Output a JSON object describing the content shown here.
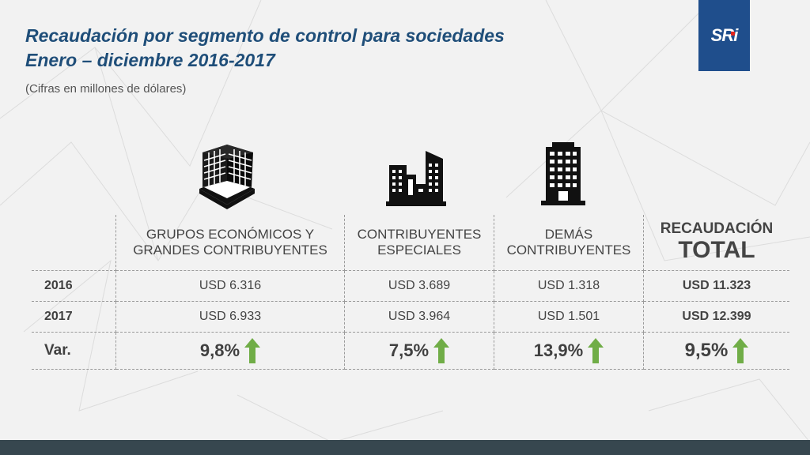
{
  "title_line1": "Recaudación por segmento de control para sociedades",
  "title_line2": "Enero – diciembre 2016-2017",
  "subtitle": "(Cifras en millones de dólares)",
  "logo": {
    "text": "SRi",
    "bg_color": "#1f4e8c",
    "dot_color": "#e2231a"
  },
  "icons": [
    "office-building-icon",
    "city-buildings-icon",
    "tall-building-icon"
  ],
  "columns": {
    "grupos": "GRUPOS ECONÓMICOS Y GRANDES CONTRIBUYENTES",
    "especiales": "CONTRIBUYENTES ESPECIALES",
    "demas": "DEMÁS CONTRIBUYENTES",
    "total_line1": "RECAUDACIÓN",
    "total_line2": "TOTAL"
  },
  "rows": [
    {
      "label": "2016",
      "grupos": "USD 6.316",
      "especiales": "USD 3.689",
      "demas": "USD 1.318",
      "total": "USD 11.323"
    },
    {
      "label": "2017",
      "grupos": "USD 6.933",
      "especiales": "USD 3.964",
      "demas": "USD 1.501",
      "total": "USD 12.399"
    }
  ],
  "variation": {
    "label": "Var.",
    "grupos": "9,8%",
    "especiales": "7,5%",
    "demas": "13,9%",
    "total": "9,5%"
  },
  "colors": {
    "title": "#1f4e79",
    "arrow": "#70ad47",
    "footer": "#37474f"
  }
}
